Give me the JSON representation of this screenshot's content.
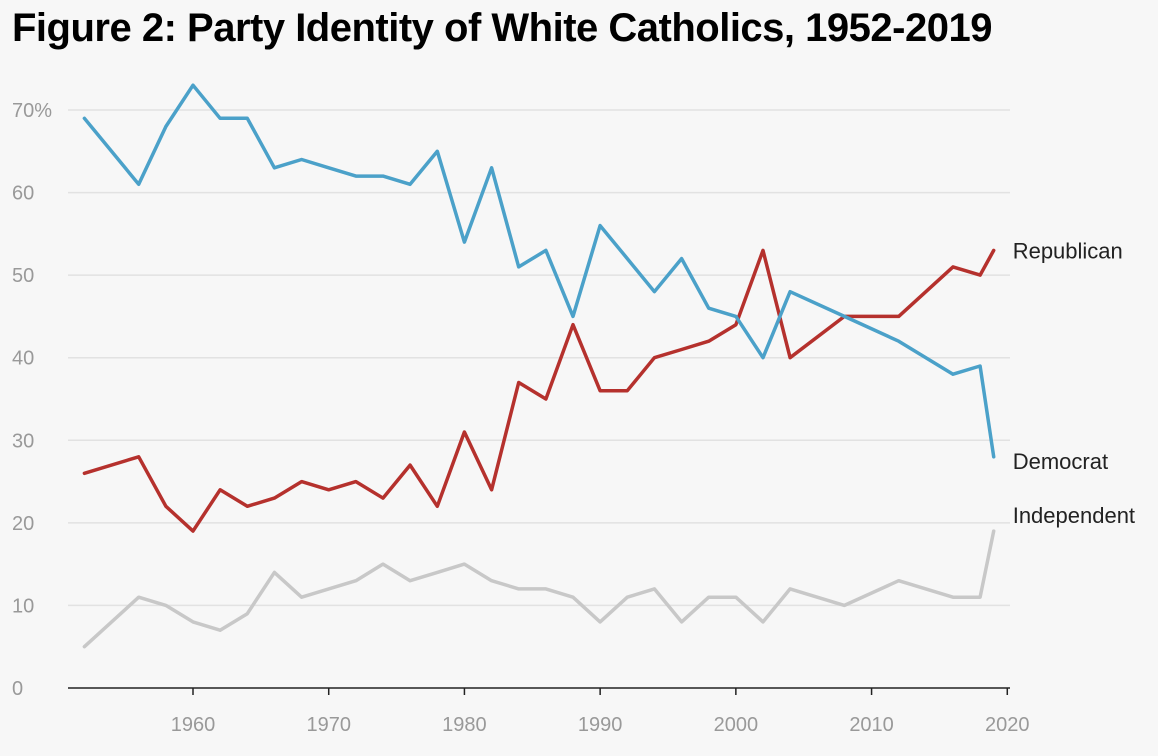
{
  "chart_data": {
    "type": "line",
    "title": "Figure 2: Party Identity of White Catholics, 1952-2019",
    "xlabel": "",
    "ylabel": "",
    "x": [
      1952,
      1956,
      1958,
      1960,
      1962,
      1964,
      1966,
      1968,
      1970,
      1972,
      1974,
      1976,
      1978,
      1980,
      1982,
      1984,
      1986,
      1988,
      1990,
      1992,
      1994,
      1996,
      1998,
      2000,
      2002,
      2004,
      2008,
      2012,
      2016,
      2018,
      2019
    ],
    "series": [
      {
        "name": "Republican",
        "color": "#b5312d",
        "values": [
          26,
          28,
          22,
          19,
          24,
          22,
          23,
          25,
          24,
          25,
          23,
          27,
          22,
          31,
          24,
          37,
          35,
          44,
          36,
          36,
          40,
          41,
          42,
          44,
          53,
          40,
          45,
          45,
          51,
          50,
          53
        ]
      },
      {
        "name": "Democrat",
        "color": "#4ba1c9",
        "values": [
          69,
          61,
          68,
          73,
          69,
          69,
          63,
          64,
          63,
          62,
          62,
          61,
          65,
          54,
          63,
          51,
          53,
          45,
          56,
          52,
          48,
          52,
          46,
          45,
          40,
          48,
          45,
          42,
          38,
          39,
          28
        ]
      },
      {
        "name": "Independent",
        "color": "#c8c8c8",
        "values": [
          5,
          11,
          10,
          8,
          7,
          9,
          14,
          11,
          12,
          13,
          15,
          13,
          14,
          15,
          13,
          12,
          12,
          11,
          8,
          11,
          12,
          8,
          11,
          11,
          8,
          12,
          10,
          13,
          11,
          11,
          19
        ]
      }
    ],
    "xlim": [
      1950.2,
      2020.2
    ],
    "ylim": [
      0,
      70
    ],
    "xticks": [
      1960,
      1970,
      1980,
      1990,
      2000,
      2010,
      2020
    ],
    "yticks": [
      0,
      10,
      20,
      30,
      40,
      50,
      60,
      70
    ],
    "ytick_labels": [
      "0",
      "10",
      "20",
      "30",
      "40",
      "50",
      "60",
      "70%"
    ],
    "grid": true,
    "legend": "inline labels at right end of each line"
  }
}
